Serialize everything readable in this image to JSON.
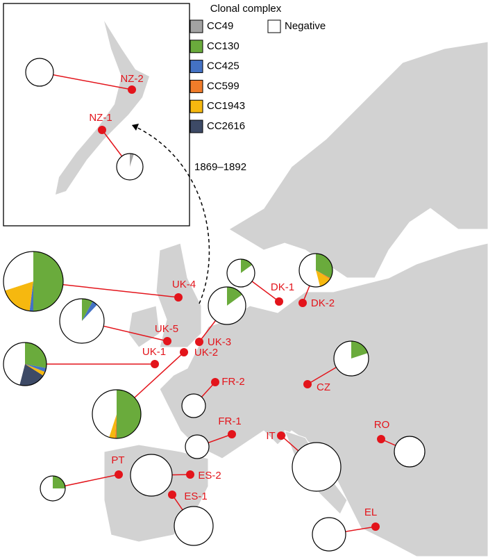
{
  "legend": {
    "title": "Clonal complex",
    "categories": [
      "CC49",
      "CC130",
      "CC425",
      "CC599",
      "CC1943",
      "CC2616",
      "Negative"
    ],
    "colors": [
      "#a3a3a3",
      "#6aab3c",
      "#4472c4",
      "#f07c2a",
      "#f6b80f",
      "#3d4a66",
      "#ffffff"
    ]
  },
  "annotation": "1869–1892",
  "sites": [
    {
      "label": "NZ-2",
      "values": [
        0,
        0,
        0,
        0,
        0,
        0,
        100
      ]
    },
    {
      "label": "NZ-1",
      "values": [
        5,
        0,
        0,
        0,
        0,
        0,
        95
      ]
    },
    {
      "label": "UK-4",
      "values": [
        0,
        50,
        2,
        0,
        18,
        0,
        30
      ]
    },
    {
      "label": "UK-5",
      "values": [
        0,
        8,
        4,
        0,
        0,
        0,
        88
      ]
    },
    {
      "label": "UK-1",
      "values": [
        0,
        28,
        3,
        0,
        3,
        20,
        46
      ]
    },
    {
      "label": "UK-3",
      "values": [
        0,
        15,
        0,
        0,
        0,
        0,
        85
      ]
    },
    {
      "label": "UK-2",
      "values": [
        0,
        50,
        0,
        1,
        4,
        0,
        45
      ]
    },
    {
      "label": "DK-1",
      "values": [
        0,
        15,
        0,
        0,
        0,
        0,
        85
      ]
    },
    {
      "label": "DK-2",
      "values": [
        0,
        33,
        0,
        1,
        12,
        0,
        54
      ]
    },
    {
      "label": "CZ",
      "values": [
        0,
        20,
        0,
        0,
        0,
        0,
        80
      ]
    },
    {
      "label": "FR-2",
      "values": [
        0,
        0,
        0,
        0,
        0,
        0,
        100
      ]
    },
    {
      "label": "FR-1",
      "values": [
        0,
        0,
        0,
        0,
        0,
        0,
        100
      ]
    },
    {
      "label": "IT",
      "values": [
        0,
        0,
        0,
        0,
        0,
        0,
        100
      ]
    },
    {
      "label": "RO",
      "values": [
        0,
        0,
        0,
        0,
        0,
        0,
        100
      ]
    },
    {
      "label": "PT",
      "values": [
        0,
        25,
        0,
        0,
        0,
        0,
        75
      ]
    },
    {
      "label": "ES-2",
      "values": [
        0,
        0,
        0,
        0,
        0,
        0,
        100
      ]
    },
    {
      "label": "ES-1",
      "values": [
        0,
        0,
        0,
        0,
        0,
        0,
        100
      ]
    },
    {
      "label": "EL",
      "values": [
        0,
        0,
        0,
        0,
        0,
        0,
        100
      ]
    }
  ]
}
